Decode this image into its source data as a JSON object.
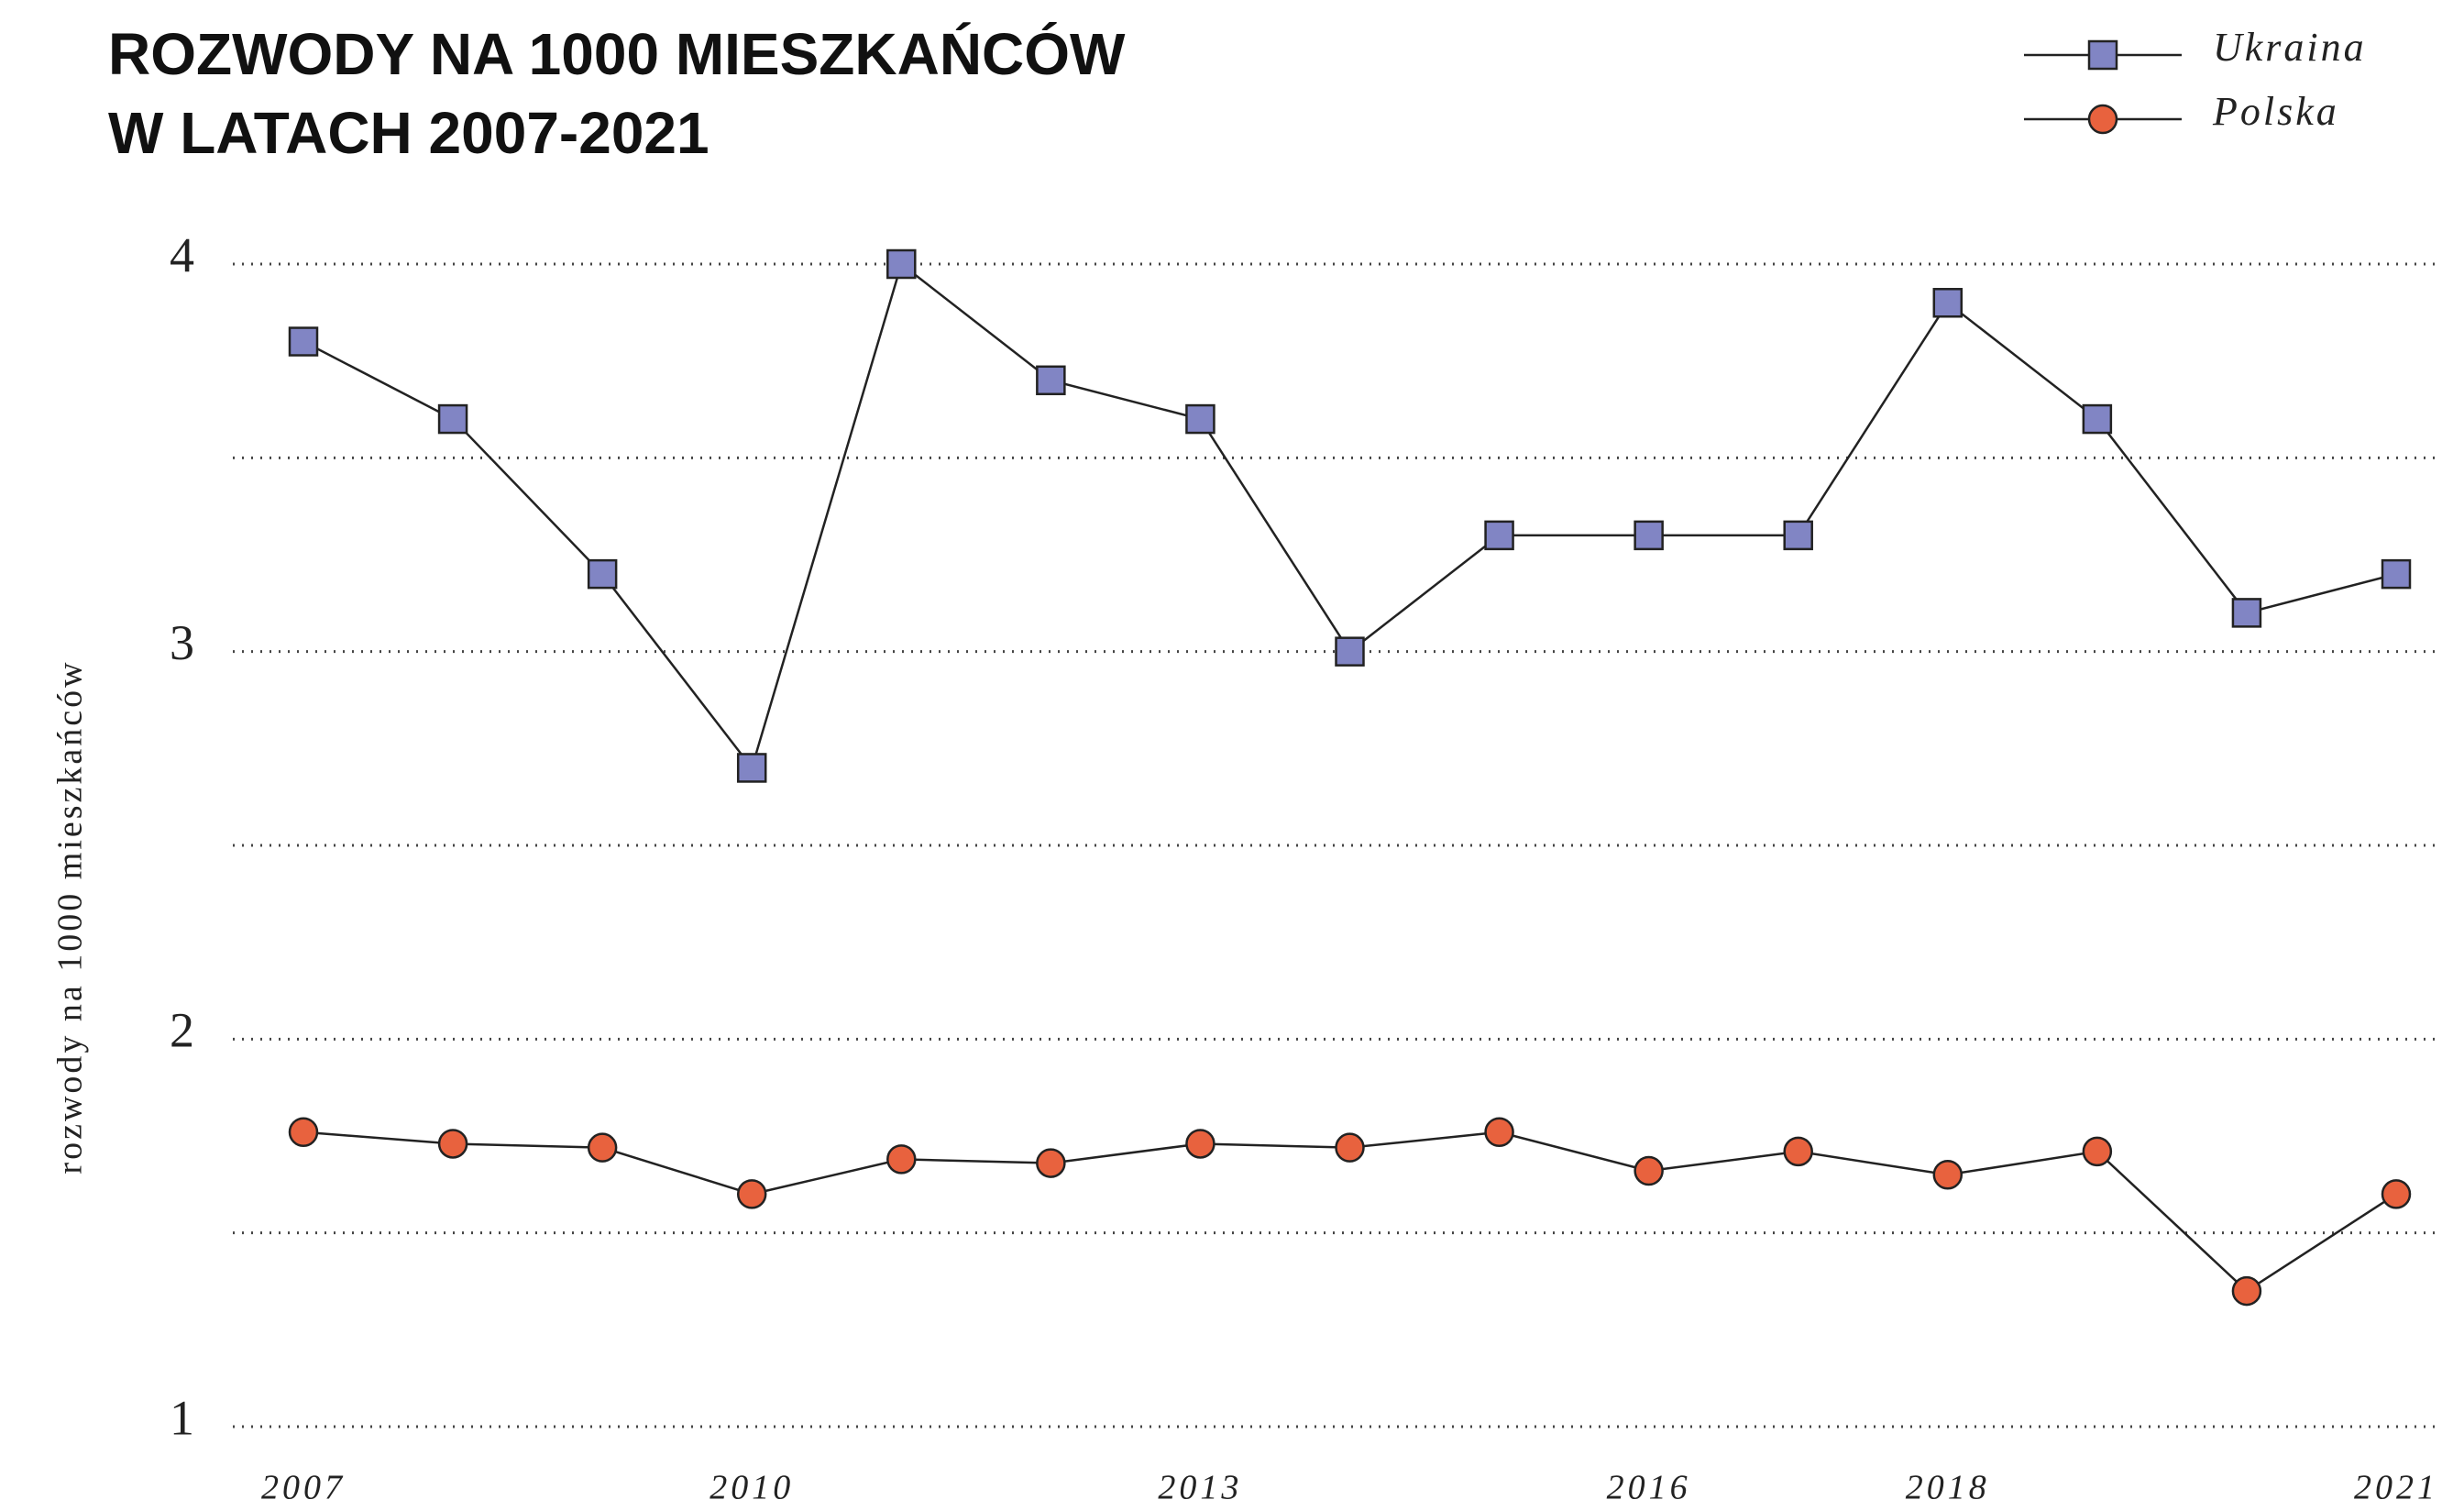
{
  "chart_data": {
    "type": "line",
    "title": [
      "ROZWODY NA 1000 MIESZKAŃCÓW",
      "W LATACH 2007-2021"
    ],
    "y_label": "rozwody na 1000 mieszkańców",
    "x": [
      2007,
      2008,
      2009,
      2010,
      2011,
      2012,
      2013,
      2014,
      2015,
      2016,
      2017,
      2018,
      2019,
      2020,
      2021
    ],
    "xlim": [
      2007,
      2021
    ],
    "xticks": [
      2007,
      2010,
      2013,
      2016,
      2018,
      2021
    ],
    "ylim": [
      1,
      4
    ],
    "yticks": [
      1,
      2,
      3,
      4
    ],
    "grid": true,
    "grid_minor": [
      1.5,
      2.5,
      3.5
    ],
    "legend": "top-right",
    "series": [
      {
        "name": "Ukraina",
        "color": "#8185c4",
        "marker": "square",
        "values": [
          3.8,
          3.6,
          3.2,
          2.7,
          4.0,
          3.7,
          3.6,
          3.0,
          3.3,
          3.3,
          3.3,
          3.9,
          3.6,
          3.1,
          3.2
        ]
      },
      {
        "name": "Polska",
        "color": "#e8623e",
        "marker": "circle",
        "values": [
          1.76,
          1.73,
          1.72,
          1.6,
          1.69,
          1.68,
          1.73,
          1.72,
          1.76,
          1.66,
          1.71,
          1.65,
          1.71,
          1.35,
          1.6
        ]
      }
    ]
  }
}
